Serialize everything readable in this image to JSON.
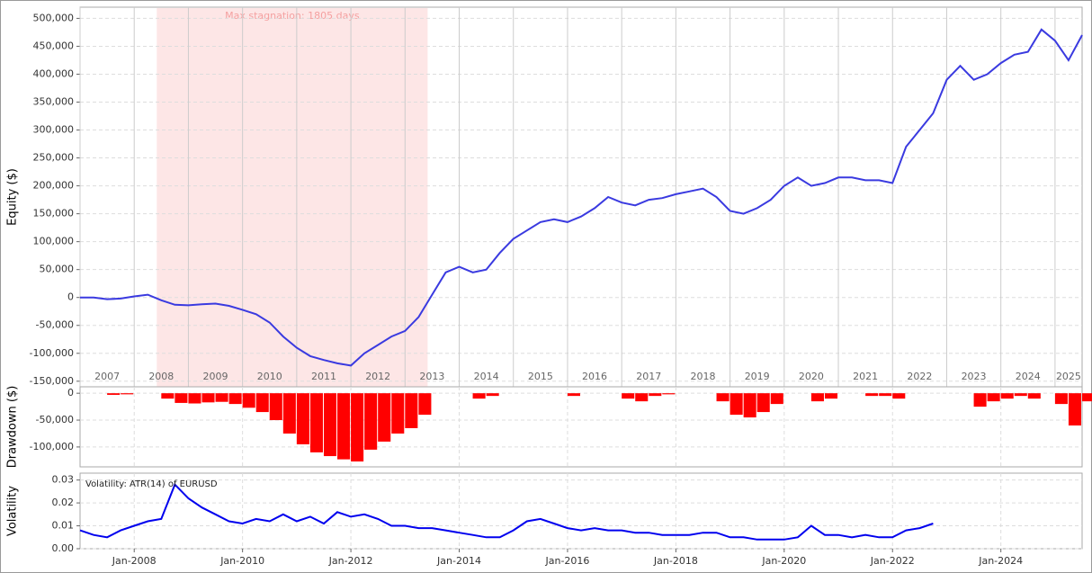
{
  "chart_data": [
    {
      "type": "line",
      "y_label": "Equity ($)",
      "color": "#3a3ae0",
      "x": [
        "2007-01",
        "2007-04",
        "2007-07",
        "2007-10",
        "2008-01",
        "2008-04",
        "2008-07",
        "2008-10",
        "2009-01",
        "2009-04",
        "2009-07",
        "2009-10",
        "2010-01",
        "2010-04",
        "2010-07",
        "2010-10",
        "2011-01",
        "2011-04",
        "2011-07",
        "2011-10",
        "2012-01",
        "2012-04",
        "2012-07",
        "2012-10",
        "2013-01",
        "2013-04",
        "2013-07",
        "2013-10",
        "2014-01",
        "2014-04",
        "2014-07",
        "2014-10",
        "2015-01",
        "2015-04",
        "2015-07",
        "2015-10",
        "2016-01",
        "2016-04",
        "2016-07",
        "2016-10",
        "2017-01",
        "2017-04",
        "2017-07",
        "2017-10",
        "2018-01",
        "2018-04",
        "2018-07",
        "2018-10",
        "2019-01",
        "2019-04",
        "2019-07",
        "2019-10",
        "2020-01",
        "2020-04",
        "2020-07",
        "2020-10",
        "2021-01",
        "2021-04",
        "2021-07",
        "2021-10",
        "2022-01",
        "2022-04",
        "2022-07",
        "2022-10",
        "2023-01",
        "2023-04",
        "2023-07",
        "2023-10",
        "2024-01",
        "2024-04",
        "2024-07",
        "2024-10",
        "2025-01",
        "2025-04",
        "2025-07"
      ],
      "values": [
        0,
        0,
        -3000,
        -2000,
        2000,
        5000,
        -5000,
        -13000,
        -14000,
        -12000,
        -11000,
        -15000,
        -22000,
        -30000,
        -45000,
        -70000,
        -90000,
        -105000,
        -112000,
        -118000,
        -122000,
        -100000,
        -85000,
        -70000,
        -60000,
        -35000,
        5000,
        45000,
        55000,
        45000,
        50000,
        80000,
        105000,
        120000,
        135000,
        140000,
        135000,
        145000,
        160000,
        180000,
        170000,
        165000,
        175000,
        178000,
        185000,
        190000,
        195000,
        180000,
        155000,
        150000,
        160000,
        175000,
        200000,
        215000,
        200000,
        205000,
        215000,
        215000,
        210000,
        210000,
        205000,
        270000,
        300000,
        330000,
        390000,
        415000,
        390000,
        400000,
        420000,
        435000,
        440000,
        480000,
        460000,
        425000,
        470000
      ],
      "xlim": [
        "2007-01",
        "2025-07"
      ],
      "xticks": [
        {
          "value": "2007-01",
          "label": "2007"
        },
        {
          "value": "2008-01",
          "label": "2008"
        },
        {
          "value": "2009-01",
          "label": "2009"
        },
        {
          "value": "2010-01",
          "label": "2010"
        },
        {
          "value": "2011-01",
          "label": "2011"
        },
        {
          "value": "2012-01",
          "label": "2012"
        },
        {
          "value": "2013-01",
          "label": "2013"
        },
        {
          "value": "2014-01",
          "label": "2014"
        },
        {
          "value": "2015-01",
          "label": "2015"
        },
        {
          "value": "2016-01",
          "label": "2016"
        },
        {
          "value": "2017-01",
          "label": "2017"
        },
        {
          "value": "2018-01",
          "label": "2018"
        },
        {
          "value": "2019-01",
          "label": "2019"
        },
        {
          "value": "2020-01",
          "label": "2020"
        },
        {
          "value": "2021-01",
          "label": "2021"
        },
        {
          "value": "2022-01",
          "label": "2022"
        },
        {
          "value": "2023-01",
          "label": "2023"
        },
        {
          "value": "2024-01",
          "label": "2024"
        },
        {
          "value": "2025-01",
          "label": "2025"
        }
      ],
      "ylim": [
        -160000,
        520000
      ],
      "yticks": [
        {
          "value": -150000,
          "label": "-150,000"
        },
        {
          "value": -100000,
          "label": "-100,000"
        },
        {
          "value": -50000,
          "label": "-50,000"
        },
        0,
        {
          "value": 50000,
          "label": "50,000"
        },
        {
          "value": 100000,
          "label": "100,000"
        },
        {
          "value": 150000,
          "label": "150,000"
        },
        {
          "value": 200000,
          "label": "200,000"
        },
        {
          "value": 250000,
          "label": "250,000"
        },
        {
          "value": 300000,
          "label": "300,000"
        },
        {
          "value": 350000,
          "label": "350,000"
        },
        {
          "value": 400000,
          "label": "400,000"
        },
        {
          "value": 450000,
          "label": "450,000"
        },
        {
          "value": 500000,
          "label": "500,000"
        }
      ],
      "shade": {
        "from": "2008-06",
        "to": "2013-06",
        "label": "Max stagnation: 1805 days"
      }
    },
    {
      "type": "bar",
      "y_label": "Drawdown ($)",
      "color": "#ff0000",
      "x": [
        "2007-01",
        "2007-04",
        "2007-07",
        "2007-10",
        "2008-01",
        "2008-04",
        "2008-07",
        "2008-10",
        "2009-01",
        "2009-04",
        "2009-07",
        "2009-10",
        "2010-01",
        "2010-04",
        "2010-07",
        "2010-10",
        "2011-01",
        "2011-04",
        "2011-07",
        "2011-10",
        "2012-01",
        "2012-04",
        "2012-07",
        "2012-10",
        "2013-01",
        "2013-04",
        "2013-07",
        "2013-10",
        "2014-01",
        "2014-04",
        "2014-07",
        "2014-10",
        "2015-01",
        "2015-04",
        "2015-07",
        "2015-10",
        "2016-01",
        "2016-04",
        "2016-07",
        "2016-10",
        "2017-01",
        "2017-04",
        "2017-07",
        "2017-10",
        "2018-01",
        "2018-04",
        "2018-07",
        "2018-10",
        "2019-01",
        "2019-04",
        "2019-07",
        "2019-10",
        "2020-01",
        "2020-04",
        "2020-07",
        "2020-10",
        "2021-01",
        "2021-04",
        "2021-07",
        "2021-10",
        "2022-01",
        "2022-04",
        "2022-07",
        "2022-10",
        "2023-01",
        "2023-04",
        "2023-07",
        "2023-10",
        "2024-01",
        "2024-04",
        "2024-07",
        "2024-10",
        "2025-01",
        "2025-04",
        "2025-07"
      ],
      "values": [
        0,
        0,
        -3000,
        -2000,
        0,
        0,
        -10000,
        -18000,
        -19000,
        -17000,
        -16000,
        -20000,
        -27000,
        -35000,
        -50000,
        -75000,
        -95000,
        -110000,
        -117000,
        -123000,
        -127000,
        -105000,
        -90000,
        -75000,
        -65000,
        -40000,
        0,
        0,
        0,
        -10000,
        -5000,
        0,
        0,
        0,
        0,
        0,
        -5000,
        0,
        0,
        0,
        -10000,
        -15000,
        -5000,
        -2000,
        0,
        0,
        0,
        -15000,
        -40000,
        -45000,
        -35000,
        -20000,
        0,
        0,
        -15000,
        -10000,
        0,
        0,
        -5000,
        -5000,
        -10000,
        0,
        0,
        0,
        0,
        0,
        -25000,
        -15000,
        -10000,
        -5000,
        -10000,
        0,
        -20000,
        -60000,
        -15000
      ],
      "xlim": [
        "2007-01",
        "2025-07"
      ],
      "ylim": [
        -137000,
        12000
      ],
      "yticks": [
        {
          "value": -100000,
          "label": "-100,000"
        },
        {
          "value": -50000,
          "label": "-50,000"
        },
        0
      ]
    },
    {
      "type": "line",
      "y_label": "Volatility",
      "legend": "Volatility: ATR(14) of EURUSD",
      "color": "#0000ee",
      "x": [
        "2007-01",
        "2007-04",
        "2007-07",
        "2007-10",
        "2008-01",
        "2008-04",
        "2008-07",
        "2008-10",
        "2009-01",
        "2009-04",
        "2009-07",
        "2009-10",
        "2010-01",
        "2010-04",
        "2010-07",
        "2010-10",
        "2011-01",
        "2011-04",
        "2011-07",
        "2011-10",
        "2012-01",
        "2012-04",
        "2012-07",
        "2012-10",
        "2013-01",
        "2013-04",
        "2013-07",
        "2013-10",
        "2014-01",
        "2014-04",
        "2014-07",
        "2014-10",
        "2015-01",
        "2015-04",
        "2015-07",
        "2015-10",
        "2016-01",
        "2016-04",
        "2016-07",
        "2016-10",
        "2017-01",
        "2017-04",
        "2017-07",
        "2017-10",
        "2018-01",
        "2018-04",
        "2018-07",
        "2018-10",
        "2019-01",
        "2019-04",
        "2019-07",
        "2019-10",
        "2020-01",
        "2020-04",
        "2020-07",
        "2020-10",
        "2021-01",
        "2021-04",
        "2021-07",
        "2021-10",
        "2022-01",
        "2022-04",
        "2022-07",
        "2022-10"
      ],
      "values": [
        0.008,
        0.006,
        0.005,
        0.008,
        0.01,
        0.012,
        0.013,
        0.028,
        0.022,
        0.018,
        0.015,
        0.012,
        0.011,
        0.013,
        0.012,
        0.015,
        0.012,
        0.014,
        0.011,
        0.016,
        0.014,
        0.015,
        0.013,
        0.01,
        0.01,
        0.009,
        0.009,
        0.008,
        0.007,
        0.006,
        0.005,
        0.005,
        0.008,
        0.012,
        0.013,
        0.011,
        0.009,
        0.008,
        0.009,
        0.008,
        0.008,
        0.007,
        0.007,
        0.006,
        0.006,
        0.006,
        0.007,
        0.007,
        0.005,
        0.005,
        0.004,
        0.004,
        0.004,
        0.005,
        0.01,
        0.006,
        0.006,
        0.005,
        0.006,
        0.005,
        0.005,
        0.008,
        0.009,
        0.011
      ],
      "xlim": [
        "2007-01",
        "2025-07"
      ],
      "xticks": [
        {
          "value": "2008-01",
          "label": "Jan-2008"
        },
        {
          "value": "2010-01",
          "label": "Jan-2010"
        },
        {
          "value": "2012-01",
          "label": "Jan-2012"
        },
        {
          "value": "2014-01",
          "label": "Jan-2014"
        },
        {
          "value": "2016-01",
          "label": "Jan-2016"
        },
        {
          "value": "2018-01",
          "label": "Jan-2018"
        },
        {
          "value": "2020-01",
          "label": "Jan-2020"
        },
        {
          "value": "2022-01",
          "label": "Jan-2022"
        },
        {
          "value": "2024-01",
          "label": "Jan-2024"
        }
      ],
      "ylim": [
        0,
        0.033
      ],
      "yticks": [
        {
          "value": 0,
          "label": "0.00"
        },
        {
          "value": 0.01,
          "label": "0.01"
        },
        {
          "value": 0.02,
          "label": "0.02"
        },
        {
          "value": 0.03,
          "label": "0.03"
        }
      ]
    }
  ]
}
